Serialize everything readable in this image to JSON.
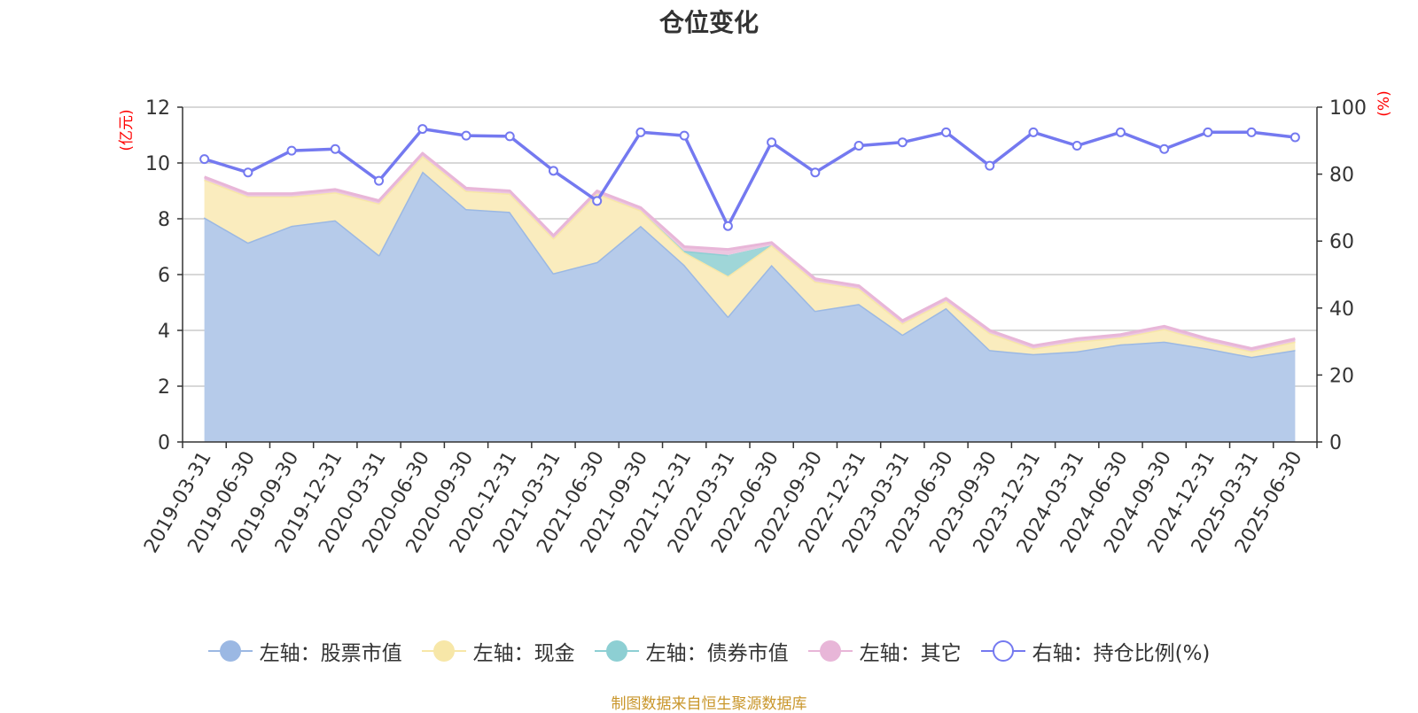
{
  "title": "仓位变化",
  "source": "制图数据来自恒生聚源数据库",
  "chart_data": {
    "type": "area",
    "categories": [
      "2019-03-31",
      "2019-06-30",
      "2019-09-30",
      "2019-12-31",
      "2020-03-31",
      "2020-06-30",
      "2020-09-30",
      "2020-12-31",
      "2021-03-31",
      "2021-06-30",
      "2021-09-30",
      "2021-12-31",
      "2022-03-31",
      "2022-06-30",
      "2022-09-30",
      "2022-12-31",
      "2023-03-31",
      "2023-06-30",
      "2023-09-30",
      "2023-12-31",
      "2024-03-31",
      "2024-06-30",
      "2024-09-30",
      "2024-12-31",
      "2025-03-31",
      "2025-06-30"
    ],
    "left_axis": {
      "unit_label": "(亿元)",
      "ylim": [
        0,
        12
      ],
      "ticks": [
        "0",
        "2",
        "4",
        "6",
        "8",
        "10",
        "12"
      ]
    },
    "right_axis": {
      "unit_label": "(%)",
      "ylim": [
        0,
        100
      ],
      "ticks": [
        "0",
        "20",
        "40",
        "60",
        "80",
        "100"
      ]
    },
    "grid": true,
    "legend_position": "bottom",
    "series": [
      {
        "name": "左轴：股票市值",
        "axis": "left",
        "type": "area",
        "color": "#9bb8e3",
        "fill": "#b6cbea",
        "values": [
          8.05,
          7.15,
          7.75,
          7.95,
          6.7,
          9.7,
          8.35,
          8.25,
          6.05,
          6.45,
          7.75,
          6.35,
          4.5,
          6.35,
          4.7,
          4.95,
          3.85,
          4.8,
          3.3,
          3.15,
          3.25,
          3.5,
          3.6,
          3.35,
          3.05,
          3.3
        ]
      },
      {
        "name": "左轴：现金",
        "axis": "left",
        "type": "area",
        "color": "#f7e7a8",
        "fill": "#faecbe",
        "values": [
          1.35,
          1.65,
          1.05,
          1.0,
          1.85,
          0.55,
          0.65,
          0.65,
          1.25,
          2.45,
          0.55,
          0.45,
          1.45,
          0.7,
          1.05,
          0.55,
          0.4,
          0.25,
          0.6,
          0.2,
          0.35,
          0.25,
          0.45,
          0.25,
          0.2,
          0.3
        ]
      },
      {
        "name": "左轴：债券市值",
        "axis": "left",
        "type": "area",
        "color": "#8dcfd3",
        "fill": "#9fd6d8",
        "values": [
          0,
          0,
          0,
          0,
          0,
          0,
          0,
          0,
          0,
          0,
          0,
          0.05,
          0.75,
          0,
          0,
          0,
          0,
          0,
          0,
          0,
          0,
          0,
          0,
          0,
          0,
          0
        ]
      },
      {
        "name": "左轴：其它",
        "axis": "left",
        "type": "area",
        "color": "#e8b6d8",
        "fill": "#ecc6e0",
        "values": [
          0.1,
          0.1,
          0.1,
          0.1,
          0.1,
          0.1,
          0.1,
          0.1,
          0.1,
          0.1,
          0.1,
          0.15,
          0.2,
          0.1,
          0.1,
          0.1,
          0.1,
          0.1,
          0.1,
          0.1,
          0.1,
          0.1,
          0.1,
          0.1,
          0.1,
          0.1
        ]
      },
      {
        "name": "右轴：持仓比例(%)",
        "axis": "right",
        "type": "line",
        "color": "#7479f0",
        "values": [
          84.5,
          80.5,
          87,
          87.5,
          78,
          93.5,
          91.5,
          91.3,
          81,
          72,
          92.5,
          91.5,
          64.5,
          89.5,
          80.5,
          88.5,
          89.5,
          92.5,
          82.5,
          92.5,
          88.5,
          92.5,
          87.5,
          92.5,
          92.5,
          91
        ]
      }
    ]
  }
}
